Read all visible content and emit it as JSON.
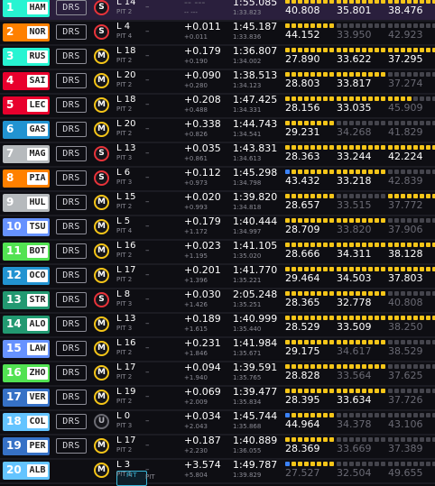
{
  "colors": {
    "yellow_segment": "#f5c518",
    "green_segment": "#2fce61",
    "purple_segment": "#9b4dff",
    "blue_segment": "#3b82f6",
    "grey_segment": "#44444c",
    "soft_tyre": "#e8333a",
    "medium_tyre": "#f5c518"
  },
  "icons": {
    "tyre": "tyre-compound-icon",
    "segment": "mini-sector-icon"
  },
  "rows": [
    {
      "pos": "1",
      "code": "HAM",
      "team_color": "#27f4d2",
      "drs": "DRS",
      "tyre": "S",
      "lap": "L 14",
      "pit": "PIT 2",
      "gap": "-- ---",
      "interval": "-- ---",
      "last": "1:55.085",
      "best": "1:33.823",
      "gap_muted": true,
      "s1": {
        "time": "40.808",
        "segs": "yyyyyyyy",
        "dim": false
      },
      "s2": {
        "time": "35.801",
        "segs": "yyyyyyyy",
        "dim": false
      },
      "s3": {
        "time": "38.476",
        "segs": "yyyyyyyy",
        "dim": false
      }
    },
    {
      "pos": "2",
      "code": "NOR",
      "team_color": "#ff8000",
      "drs": "DRS",
      "tyre": "S",
      "lap": "L 4",
      "pit": "PIT 4",
      "gap": "+0.011",
      "interval": "+0.011",
      "last": "1:45.187",
      "best": "1:33.836",
      "s1": {
        "time": "44.152",
        "segs": "yyyyyyyy",
        "dim": false
      },
      "s2": {
        "time": "33.950",
        "segs": "gggggggg",
        "dim": true
      },
      "s3": {
        "time": "42.923",
        "segs": "gggggggg",
        "dim": true
      }
    },
    {
      "pos": "3",
      "code": "RUS",
      "team_color": "#27f4d2",
      "drs": "DRS",
      "tyre": "M",
      "lap": "L 18",
      "pit": "PIT 2",
      "gap": "+0.179",
      "interval": "+0.190",
      "last": "1:36.807",
      "best": "1:34.002",
      "s1": {
        "time": "27.890",
        "segs": "yyyyyyyy",
        "dim": false
      },
      "s2": {
        "time": "33.622",
        "segs": "yyyyyyyy",
        "dim": false
      },
      "s3": {
        "time": "37.295",
        "segs": "yyyyyyyy",
        "dim": false
      }
    },
    {
      "pos": "4",
      "code": "SAI",
      "team_color": "#e8002d",
      "drs": "DRS",
      "tyre": "M",
      "lap": "L 20",
      "pit": "PIT 2",
      "gap": "+0.090",
      "interval": "+0.280",
      "last": "1:38.513",
      "best": "1:34.123",
      "s1": {
        "time": "28.803",
        "segs": "yyyyyyyy",
        "dim": false
      },
      "s2": {
        "time": "33.817",
        "segs": "yyyyyyyy",
        "dim": false
      },
      "s3": {
        "time": "37.274",
        "segs": "gggggggg",
        "dim": true
      }
    },
    {
      "pos": "5",
      "code": "LEC",
      "team_color": "#e8002d",
      "drs": "DRS",
      "tyre": "M",
      "lap": "L 18",
      "pit": "PIT 2",
      "gap": "+0.208",
      "interval": "+0.488",
      "last": "1:47.425",
      "best": "1:34.331",
      "s1": {
        "time": "28.156",
        "segs": "yyyyyyyy",
        "dim": false
      },
      "s2": {
        "time": "33.035",
        "segs": "yyyyyyyy",
        "dim": false
      },
      "s3": {
        "time": "45.909",
        "segs": "yyyygggg",
        "dim": true
      }
    },
    {
      "pos": "6",
      "code": "GAS",
      "team_color": "#2293d1",
      "drs": "DRS",
      "tyre": "M",
      "lap": "L 20",
      "pit": "PIT 2",
      "gap": "+0.338",
      "interval": "+0.826",
      "last": "1:44.743",
      "best": "1:34.541",
      "s1": {
        "time": "29.231",
        "segs": "yyyyyyyy",
        "dim": false
      },
      "s2": {
        "time": "34.268",
        "segs": "gggggggg",
        "dim": true
      },
      "s3": {
        "time": "41.829",
        "segs": "gggggggg",
        "dim": true
      }
    },
    {
      "pos": "7",
      "code": "MAG",
      "team_color": "#b6babd",
      "drs": "DRS",
      "tyre": "S",
      "lap": "L 13",
      "pit": "PIT 3",
      "gap": "+0.035",
      "interval": "+0.861",
      "last": "1:43.831",
      "best": "1:34.613",
      "s1": {
        "time": "28.363",
        "segs": "yyyyyyyy",
        "dim": false
      },
      "s2": {
        "time": "33.244",
        "segs": "yyyyyyyy",
        "dim": false
      },
      "s3": {
        "time": "42.224",
        "segs": "yyyyyyyy",
        "dim": false
      }
    },
    {
      "pos": "8",
      "code": "PIA",
      "team_color": "#ff8000",
      "drs": "DRS",
      "tyre": "S",
      "lap": "L 6",
      "pit": "PIT 3",
      "gap": "+0.112",
      "interval": "+0.973",
      "last": "1:45.298",
      "best": "1:34.798",
      "s1": {
        "time": "43.432",
        "segs": "byyyyyyy",
        "dim": false
      },
      "s2": {
        "time": "33.218",
        "segs": "yyyyyyyy",
        "dim": false
      },
      "s3": {
        "time": "42.839",
        "segs": "gggggggg",
        "dim": true
      }
    },
    {
      "pos": "9",
      "code": "HUL",
      "team_color": "#b6babd",
      "drs": "DRS",
      "tyre": "M",
      "lap": "L 15",
      "pit": "PIT 2",
      "gap": "+0.020",
      "interval": "+0.993",
      "last": "1:39.820",
      "best": "1:34.818",
      "s1": {
        "time": "28.657",
        "segs": "yyyyyyyy",
        "dim": false
      },
      "s2": {
        "time": "33.515",
        "segs": "gggggggg",
        "dim": true
      },
      "s3": {
        "time": "37.772",
        "segs": "yyyyyyyy",
        "dim": true
      }
    },
    {
      "pos": "10",
      "code": "TSU",
      "team_color": "#6692ff",
      "drs": "DRS",
      "tyre": "M",
      "lap": "L 5",
      "pit": "PIT 4",
      "gap": "+0.179",
      "interval": "+1.172",
      "last": "1:40.444",
      "best": "1:34.997",
      "s1": {
        "time": "28.709",
        "segs": "yyyyyyyy",
        "dim": false
      },
      "s2": {
        "time": "33.820",
        "segs": "yyyyyyyy",
        "dim": true
      },
      "s3": {
        "time": "37.906",
        "segs": "gggggggg",
        "dim": true
      }
    },
    {
      "pos": "11",
      "code": "BOT",
      "team_color": "#52e252",
      "drs": "DRS",
      "tyre": "M",
      "lap": "L 16",
      "pit": "PIT 2",
      "gap": "+0.023",
      "interval": "+1.195",
      "last": "1:41.105",
      "best": "1:35.020",
      "s1": {
        "time": "28.666",
        "segs": "yyyyyyyy",
        "dim": false
      },
      "s2": {
        "time": "34.311",
        "segs": "yyyyyyyy",
        "dim": false
      },
      "s3": {
        "time": "38.128",
        "segs": "yyyyyyyy",
        "dim": false
      }
    },
    {
      "pos": "12",
      "code": "OCO",
      "team_color": "#2293d1",
      "drs": "DRS",
      "tyre": "M",
      "lap": "L 17",
      "pit": "PIT 2",
      "gap": "+0.201",
      "interval": "+1.396",
      "last": "1:41.770",
      "best": "1:35.221",
      "s1": {
        "time": "29.464",
        "segs": "yyyyyyyy",
        "dim": false
      },
      "s2": {
        "time": "34.503",
        "segs": "yyyyyyyy",
        "dim": false
      },
      "s3": {
        "time": "37.803",
        "segs": "yyyyyyyy",
        "dim": false
      }
    },
    {
      "pos": "13",
      "code": "STR",
      "team_color": "#229971",
      "drs": "DRS",
      "tyre": "S",
      "lap": "L 8",
      "pit": "PIT 3",
      "gap": "+0.030",
      "interval": "+1.426",
      "last": "2:05.248",
      "best": "1:35.251",
      "s1": {
        "time": "28.365",
        "segs": "yyyyyyyy",
        "dim": false
      },
      "s2": {
        "time": "32.778",
        "segs": "yyyyyyyy",
        "dim": false
      },
      "s3": {
        "time": "40.808",
        "segs": "gggggggg",
        "dim": true
      }
    },
    {
      "pos": "14",
      "code": "ALO",
      "team_color": "#229971",
      "drs": "DRS",
      "tyre": "M",
      "lap": "L 13",
      "pit": "PIT 3",
      "gap": "+0.189",
      "interval": "+1.615",
      "last": "1:40.999",
      "best": "1:35.440",
      "s1": {
        "time": "28.529",
        "segs": "yyyyyyyy",
        "dim": false
      },
      "s2": {
        "time": "33.509",
        "segs": "yyyyyyyy",
        "dim": false
      },
      "s3": {
        "time": "38.250",
        "segs": "yyyyyyyy",
        "dim": true
      }
    },
    {
      "pos": "15",
      "code": "LAW",
      "team_color": "#6692ff",
      "drs": "DRS",
      "tyre": "M",
      "lap": "L 16",
      "pit": "PIT 2",
      "gap": "+0.231",
      "interval": "+1.846",
      "last": "1:41.984",
      "best": "1:35.671",
      "s1": {
        "time": "29.175",
        "segs": "yyyyyyyy",
        "dim": false
      },
      "s2": {
        "time": "34.617",
        "segs": "yyyyyyyy",
        "dim": true
      },
      "s3": {
        "time": "38.529",
        "segs": "gggggggg",
        "dim": true
      }
    },
    {
      "pos": "16",
      "code": "ZHO",
      "team_color": "#52e252",
      "drs": "DRS",
      "tyre": "M",
      "lap": "L 17",
      "pit": "PIT 2",
      "gap": "+0.094",
      "interval": "+1.940",
      "last": "1:39.591",
      "best": "1:35.765",
      "s1": {
        "time": "28.828",
        "segs": "yyyyyyyy",
        "dim": false
      },
      "s2": {
        "time": "33.564",
        "segs": "yyyyyyyy",
        "dim": true
      },
      "s3": {
        "time": "37.625",
        "segs": "gggggggg",
        "dim": true
      }
    },
    {
      "pos": "17",
      "code": "VER",
      "team_color": "#3671c6",
      "drs": "DRS",
      "tyre": "M",
      "lap": "L 19",
      "pit": "PIT 2",
      "gap": "+0.069",
      "interval": "+2.009",
      "last": "1:39.477",
      "best": "1:35.834",
      "s1": {
        "time": "28.395",
        "segs": "yyyyyyyy",
        "dim": false
      },
      "s2": {
        "time": "33.634",
        "segs": "yyyyyyyy",
        "dim": false
      },
      "s3": {
        "time": "37.726",
        "segs": "gggggggg",
        "dim": true
      }
    },
    {
      "pos": "18",
      "code": "COL",
      "team_color": "#64c4ff",
      "drs": "DRS",
      "tyre": "U",
      "lap": "L 0",
      "pit": "PIT 3",
      "gap": "+0.034",
      "interval": "+2.043",
      "last": "1:45.744",
      "best": "1:35.868",
      "s1": {
        "time": "44.964",
        "segs": "byyyyyyy",
        "dim": false
      },
      "s2": {
        "time": "34.378",
        "segs": "gggggggg",
        "dim": true
      },
      "s3": {
        "time": "43.106",
        "segs": "gggggggg",
        "dim": true
      }
    },
    {
      "pos": "19",
      "code": "PER",
      "team_color": "#3671c6",
      "drs": "DRS",
      "tyre": "M",
      "lap": "L 17",
      "pit": "PIT 2",
      "gap": "+0.187",
      "interval": "+2.230",
      "last": "1:40.889",
      "best": "1:36.055",
      "s1": {
        "time": "28.369",
        "segs": "yyyyyyyy",
        "dim": false
      },
      "s2": {
        "time": "33.669",
        "segs": "gggggggg",
        "dim": true
      },
      "s3": {
        "time": "37.389",
        "segs": "gggggggg",
        "dim": true
      }
    },
    {
      "pos": "20",
      "code": "ALB",
      "team_color": "#64c4ff",
      "drs": "PIT",
      "tyre": "M",
      "lap": "L 3",
      "pit": "PIT 1",
      "gap": "+3.574",
      "interval": "+5.804",
      "last": "1:49.787",
      "best": "1:39.829",
      "pit_label": "PIT",
      "s1": {
        "time": "27.527",
        "segs": "byyyyyyy",
        "dim": true
      },
      "s2": {
        "time": "32.504",
        "segs": "gggggggg",
        "dim": true
      },
      "s3": {
        "time": "49.655",
        "segs": "gggggggg",
        "dim": true
      }
    }
  ]
}
